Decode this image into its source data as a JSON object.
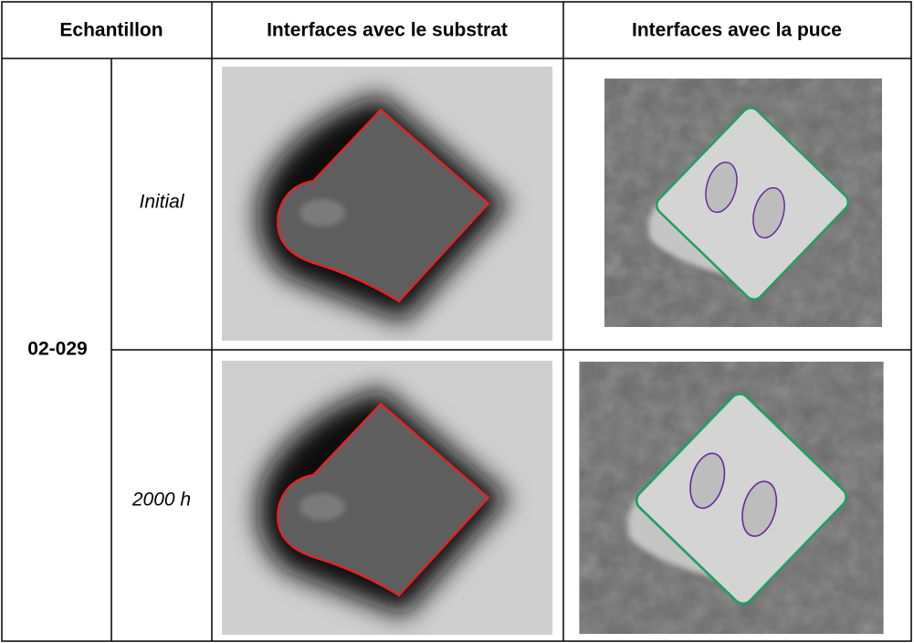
{
  "table": {
    "header": [
      "Echantillon",
      "Interfaces avec le substrat",
      "Interfaces avec la puce"
    ],
    "sample": "02-029",
    "rows": [
      {
        "condition": "Initial"
      },
      {
        "condition": "2000 h"
      }
    ]
  }
}
